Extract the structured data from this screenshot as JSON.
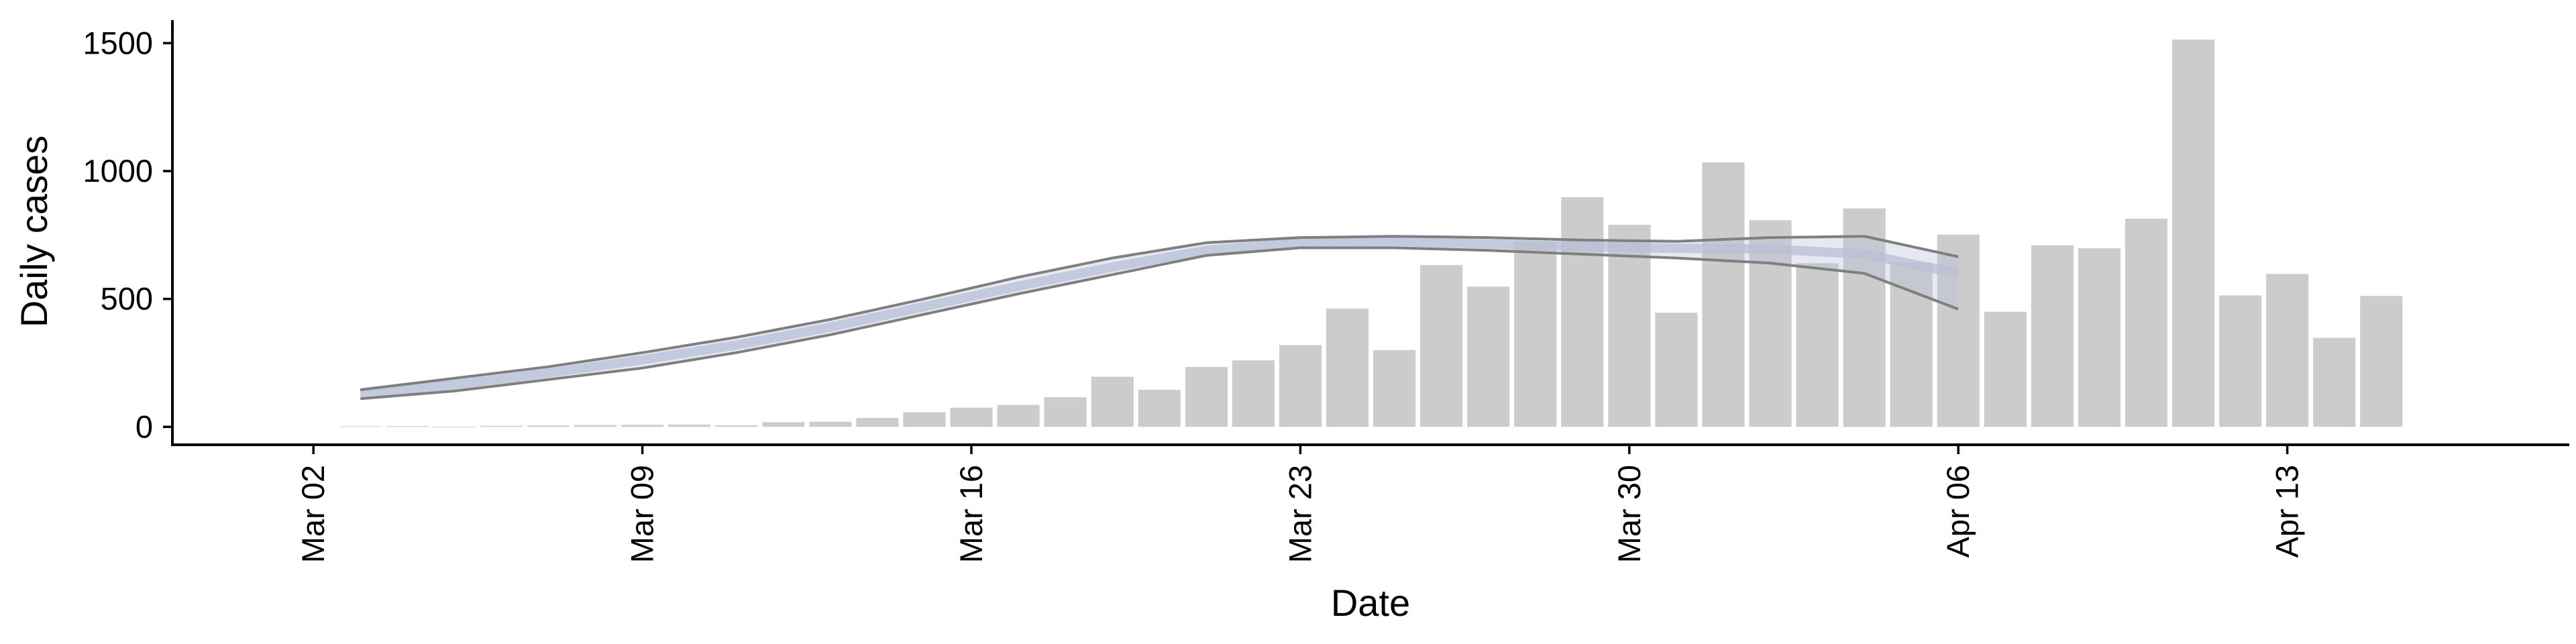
{
  "chart_data": {
    "type": "bar",
    "xlabel": "Date",
    "ylabel": "Daily cases",
    "ylim": [
      -70,
      1590
    ],
    "xlim": [
      "2020-02-28",
      "2020-04-19"
    ],
    "yticks": [
      0,
      500,
      1000,
      1500
    ],
    "xticks": [
      {
        "date": "2020-03-02",
        "label": "Mar 02"
      },
      {
        "date": "2020-03-09",
        "label": "Mar 09"
      },
      {
        "date": "2020-03-16",
        "label": "Mar 16"
      },
      {
        "date": "2020-03-23",
        "label": "Mar 23"
      },
      {
        "date": "2020-03-30",
        "label": "Mar 30"
      },
      {
        "date": "2020-04-06",
        "label": "Apr 06"
      },
      {
        "date": "2020-04-13",
        "label": "Apr 13"
      }
    ],
    "grid": false,
    "bar_color": "#cccccc",
    "bars": {
      "dates": [
        "2020-03-03",
        "2020-03-04",
        "2020-03-05",
        "2020-03-06",
        "2020-03-07",
        "2020-03-08",
        "2020-03-09",
        "2020-03-10",
        "2020-03-11",
        "2020-03-12",
        "2020-03-13",
        "2020-03-14",
        "2020-03-15",
        "2020-03-16",
        "2020-03-17",
        "2020-03-18",
        "2020-03-19",
        "2020-03-20",
        "2020-03-21",
        "2020-03-22",
        "2020-03-23",
        "2020-03-24",
        "2020-03-25",
        "2020-03-26",
        "2020-03-27",
        "2020-03-28",
        "2020-03-29",
        "2020-03-30",
        "2020-03-31",
        "2020-04-01",
        "2020-04-02",
        "2020-04-03",
        "2020-04-04",
        "2020-04-05",
        "2020-04-06",
        "2020-04-07",
        "2020-04-08",
        "2020-04-09",
        "2020-04-10",
        "2020-04-11",
        "2020-04-12",
        "2020-04-13",
        "2020-04-14",
        "2020-04-15"
      ],
      "values": [
        2,
        3,
        0,
        4,
        5,
        7,
        8,
        9,
        6,
        18,
        20,
        35,
        57,
        75,
        86,
        116,
        196,
        145,
        234,
        260,
        320,
        462,
        300,
        632,
        548,
        724,
        898,
        790,
        446,
        1034,
        808,
        640,
        854,
        642,
        752,
        450,
        710,
        698,
        814,
        1514,
        514,
        598,
        348,
        512
      ]
    },
    "series": [
      {
        "dates": [
          "2020-03-03",
          "2020-03-05",
          "2020-03-07",
          "2020-03-09",
          "2020-03-11",
          "2020-03-13",
          "2020-03-15",
          "2020-03-17",
          "2020-03-19",
          "2020-03-21",
          "2020-03-23",
          "2020-03-25",
          "2020-03-27",
          "2020-03-29",
          "2020-03-31",
          "2020-04-02",
          "2020-04-04",
          "2020-04-06"
        ],
        "values": [
          128,
          165,
          210,
          262,
          320,
          390,
          470,
          550,
          625,
          690,
          720,
          725,
          715,
          705,
          698,
          695,
          675,
          600
        ],
        "lower": [
          110,
          140,
          185,
          230,
          290,
          360,
          440,
          520,
          595,
          670,
          700,
          700,
          690,
          675,
          660,
          640,
          600,
          460
        ],
        "upper": [
          145,
          190,
          235,
          290,
          350,
          420,
          500,
          585,
          660,
          720,
          740,
          745,
          740,
          730,
          725,
          740,
          745,
          665
        ],
        "color": "#b8bfd6",
        "edge_color": "#7f7f7f"
      }
    ]
  }
}
